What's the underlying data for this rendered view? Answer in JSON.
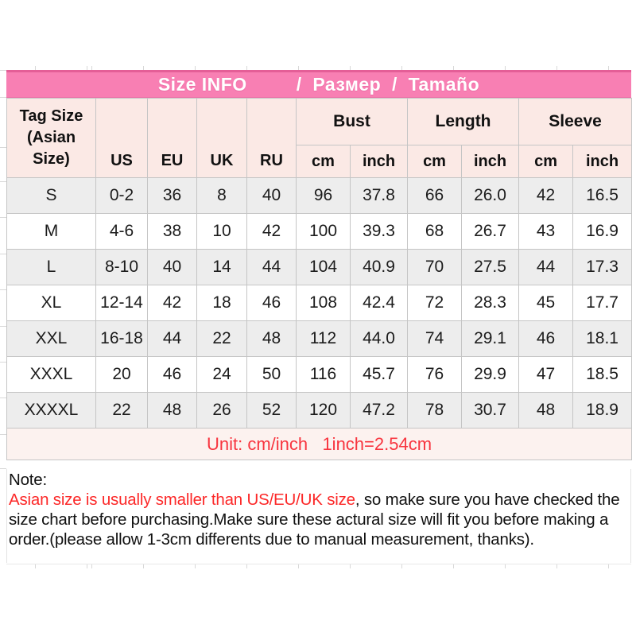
{
  "title": {
    "text": "Size INFO         /  Размер  /  Tamaño"
  },
  "table": {
    "tag_size_label": "Tag Size\n(Asian\nSize)",
    "region_headers": [
      "US",
      "EU",
      "UK",
      "RU"
    ],
    "group_headers": [
      "Bust",
      "Length",
      "Sleeve"
    ],
    "unit_headers": [
      "cm",
      "inch",
      "cm",
      "inch",
      "cm",
      "inch"
    ],
    "row_keys": [
      "size",
      "us",
      "eu",
      "uk",
      "ru",
      "bust_cm",
      "bust_inch",
      "length_cm",
      "length_inch",
      "sleeve_cm",
      "sleeve_inch"
    ],
    "rows": [
      {
        "size": "S",
        "us": "0-2",
        "eu": "36",
        "uk": "8",
        "ru": "40",
        "bust_cm": "96",
        "bust_inch": "37.8",
        "length_cm": "66",
        "length_inch": "26.0",
        "sleeve_cm": "42",
        "sleeve_inch": "16.5"
      },
      {
        "size": "M",
        "us": "4-6",
        "eu": "38",
        "uk": "10",
        "ru": "42",
        "bust_cm": "100",
        "bust_inch": "39.3",
        "length_cm": "68",
        "length_inch": "26.7",
        "sleeve_cm": "43",
        "sleeve_inch": "16.9"
      },
      {
        "size": "L",
        "us": "8-10",
        "eu": "40",
        "uk": "14",
        "ru": "44",
        "bust_cm": "104",
        "bust_inch": "40.9",
        "length_cm": "70",
        "length_inch": "27.5",
        "sleeve_cm": "44",
        "sleeve_inch": "17.3"
      },
      {
        "size": "XL",
        "us": "12-14",
        "eu": "42",
        "uk": "18",
        "ru": "46",
        "bust_cm": "108",
        "bust_inch": "42.4",
        "length_cm": "72",
        "length_inch": "28.3",
        "sleeve_cm": "45",
        "sleeve_inch": "17.7"
      },
      {
        "size": "XXL",
        "us": "16-18",
        "eu": "44",
        "uk": "22",
        "ru": "48",
        "bust_cm": "112",
        "bust_inch": "44.0",
        "length_cm": "74",
        "length_inch": "29.1",
        "sleeve_cm": "46",
        "sleeve_inch": "18.1"
      },
      {
        "size": "XXXL",
        "us": "20",
        "eu": "46",
        "uk": "24",
        "ru": "50",
        "bust_cm": "116",
        "bust_inch": "45.7",
        "length_cm": "76",
        "length_inch": "29.9",
        "sleeve_cm": "47",
        "sleeve_inch": "18.5"
      },
      {
        "size": "XXXXL",
        "us": "22",
        "eu": "48",
        "uk": "26",
        "ru": "52",
        "bust_cm": "120",
        "bust_inch": "47.2",
        "length_cm": "78",
        "length_inch": "30.7",
        "sleeve_cm": "48",
        "sleeve_inch": "18.9"
      }
    ],
    "unit_note": "Unit: cm/inch   1inch=2.54cm"
  },
  "note": {
    "label": "Note:",
    "warning_red": "Asian size is usually smaller than US/EU/UK size",
    "body": ", so make sure you have checked the size chart before purchasing.Make sure these actural size will fit you before making a order.(please allow 1-3cm differents due to manual measurement, thanks)."
  },
  "colors": {
    "title_bar_pink": "#f87fb3",
    "title_bar_edge_pink": "#e45e97",
    "header_cell_pink": "#fbe9e5",
    "unit_row_pink": "#fcf2ef",
    "alt_row_gray": "#ededed",
    "grid_border_gray": "#c5c5c5",
    "unit_text_red": "#f8353f",
    "note_text_red": "#fc2828"
  }
}
